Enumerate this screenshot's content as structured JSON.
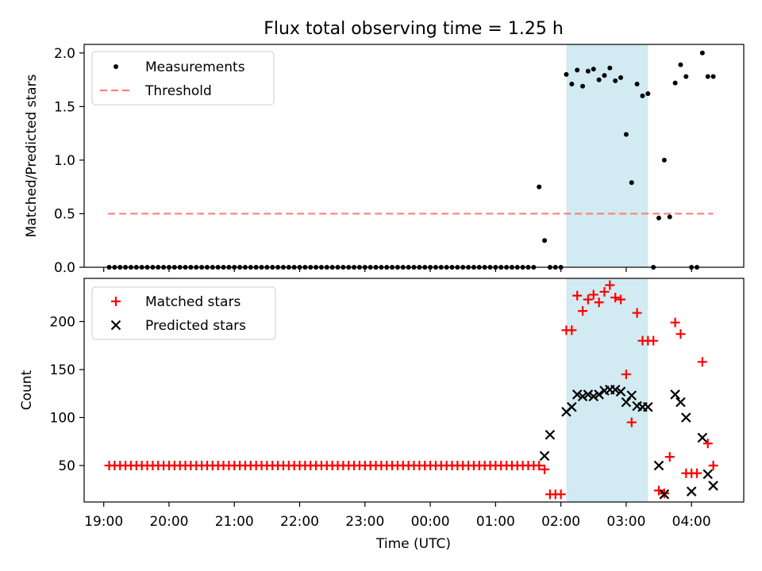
{
  "figure": {
    "title": "Flux total observing time = 1.25 h"
  },
  "chart_data": [
    {
      "type": "scatter",
      "ylabel": "Matched/Predicted stars",
      "ylim": [
        0,
        2.08
      ],
      "yticks": [
        "0.0",
        "0.5",
        "1.0",
        "1.5",
        "2.0"
      ],
      "ytick_values": [
        0,
        0.5,
        1.0,
        1.5,
        2.0
      ],
      "legend": {
        "placement": "upper-left",
        "entries": [
          "Measurements",
          "Threshold"
        ]
      },
      "threshold": {
        "value": 0.5,
        "x_range": [
          "19:04",
          "04:20"
        ],
        "color": "#ff7f7f"
      },
      "shaded_region": {
        "x_start": "02:05",
        "x_end": "03:20",
        "color": "#add8e6"
      },
      "series": [
        {
          "name": "Measurements",
          "color": "#000000",
          "x": [
            "01:40",
            "01:45",
            "01:50",
            "01:55",
            "02:00",
            "02:05",
            "02:10",
            "02:15",
            "02:20",
            "02:25",
            "02:30",
            "02:35",
            "02:40",
            "02:45",
            "02:50",
            "02:55",
            "03:00",
            "03:05",
            "03:10",
            "03:15",
            "03:20",
            "03:25",
            "03:30",
            "03:35",
            "03:40",
            "03:45",
            "03:50",
            "03:55",
            "04:00",
            "04:05",
            "04:10",
            "04:15",
            "04:20"
          ],
          "y": [
            0.75,
            0.25,
            0.0,
            0.0,
            0.0,
            1.8,
            1.71,
            1.84,
            1.69,
            1.83,
            1.85,
            1.75,
            1.79,
            1.86,
            1.74,
            1.77,
            1.24,
            0.79,
            1.71,
            1.6,
            1.62,
            0.0,
            0.46,
            1.0,
            0.47,
            1.72,
            1.89,
            1.78,
            0.0,
            0.0,
            2.0,
            1.78,
            1.78
          ]
        }
      ],
      "zero_run": {
        "x_start": "19:05",
        "x_end": "01:35",
        "step_minutes": 5,
        "y": 0.0
      }
    },
    {
      "type": "scatter",
      "xlabel": "Time (UTC)",
      "ylabel": "Count",
      "ylim": [
        12,
        245
      ],
      "yticks": [
        "50",
        "100",
        "150",
        "200"
      ],
      "ytick_values": [
        50,
        100,
        150,
        200
      ],
      "xticks": [
        "19:00",
        "20:00",
        "21:00",
        "22:00",
        "23:00",
        "00:00",
        "01:00",
        "02:00",
        "03:00",
        "04:00"
      ],
      "xlim": [
        "18:42",
        "04:48"
      ],
      "legend": {
        "placement": "upper-left",
        "entries": [
          "Matched stars",
          "Predicted stars"
        ]
      },
      "shaded_region": {
        "x_start": "02:05",
        "x_end": "03:20",
        "color": "#add8e6"
      },
      "baseline_run": {
        "x_start": "19:05",
        "x_end": "01:35",
        "step_minutes": 5,
        "y": 50
      },
      "series": [
        {
          "name": "Matched stars",
          "marker": "+",
          "color": "#ff0000",
          "x": [
            "01:40",
            "01:45",
            "01:50",
            "01:55",
            "02:00",
            "02:05",
            "02:10",
            "02:15",
            "02:20",
            "02:25",
            "02:30",
            "02:35",
            "02:40",
            "02:45",
            "02:50",
            "02:55",
            "03:00",
            "03:05",
            "03:10",
            "03:15",
            "03:20",
            "03:25",
            "03:30",
            "03:35",
            "03:40",
            "03:45",
            "03:50",
            "03:55",
            "04:00",
            "04:05",
            "04:10",
            "04:15",
            "04:20"
          ],
          "y": [
            50,
            46,
            20,
            20,
            20,
            191,
            191,
            227,
            211,
            223,
            228,
            220,
            231,
            238,
            225,
            223,
            145,
            95,
            209,
            180,
            180,
            180,
            24,
            21,
            59,
            199,
            187,
            42,
            42,
            42,
            158,
            73,
            50
          ]
        },
        {
          "name": "Predicted stars",
          "marker": "x",
          "color": "#000000",
          "x": [
            "01:45",
            "01:50",
            "02:05",
            "02:10",
            "02:15",
            "02:20",
            "02:25",
            "02:30",
            "02:35",
            "02:40",
            "02:45",
            "02:50",
            "02:55",
            "03:00",
            "03:05",
            "03:10",
            "03:15",
            "03:20",
            "03:30",
            "03:35",
            "03:45",
            "03:50",
            "03:55",
            "04:00",
            "04:10",
            "04:15",
            "04:20"
          ],
          "y": [
            60,
            82,
            106,
            111,
            124,
            122,
            124,
            122,
            124,
            128,
            129,
            129,
            127,
            116,
            123,
            112,
            111,
            111,
            50,
            20,
            124,
            116,
            100,
            23,
            79,
            41,
            29
          ]
        }
      ]
    }
  ]
}
